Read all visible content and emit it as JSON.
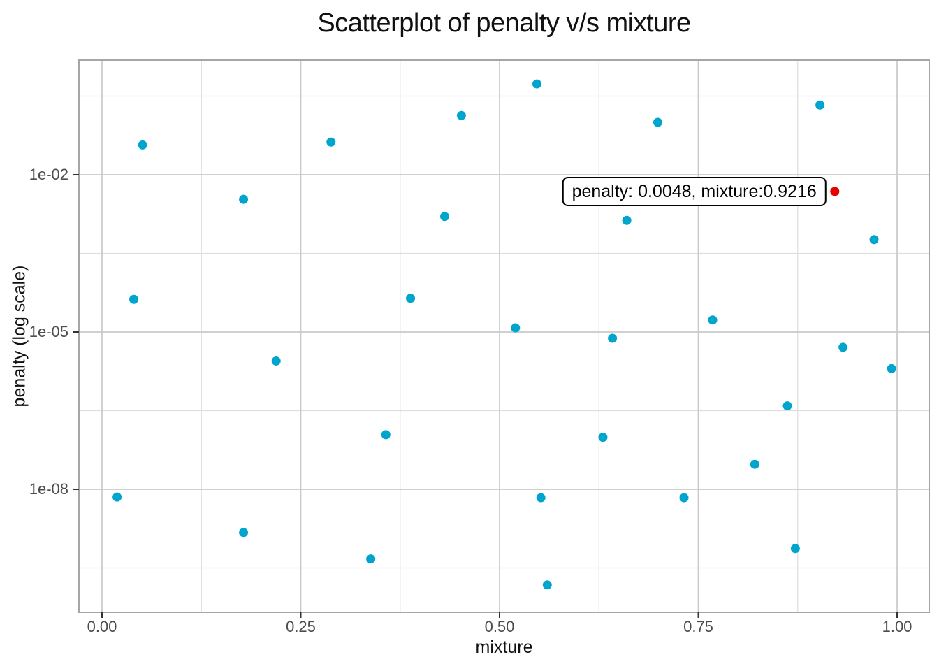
{
  "title": "Scatterplot of penalty v/s mixture",
  "tooltip": {
    "text": "penalty: 0.0048, mixture:0.9216"
  },
  "colors": {
    "point": "#00a5ce",
    "highlight": "#e60000",
    "grid_major": "#c9c9c9",
    "grid_minor": "#dedede",
    "panel_border": "#a6a6a6",
    "tick_label": "#4d4d4d",
    "text": "#111111",
    "background": "#ffffff"
  },
  "chart_data": {
    "type": "scatter",
    "title": "Scatterplot of penalty v/s mixture",
    "xlabel": "mixture",
    "ylabel": "penalty (log scale)",
    "x_scale": "linear",
    "y_scale": "log10",
    "grid": true,
    "legend_position": "none",
    "x_range": [
      -0.029,
      1.0404
    ],
    "y_log_range": [
      -10.3467,
      0.1867
    ],
    "x_ticks": [
      {
        "v": 0.0,
        "label": "0.00"
      },
      {
        "v": 0.25,
        "label": "0.25"
      },
      {
        "v": 0.5,
        "label": "0.50"
      },
      {
        "v": 0.75,
        "label": "0.75"
      },
      {
        "v": 1.0,
        "label": "1.00"
      }
    ],
    "x_minor": [
      0.125,
      0.375,
      0.625,
      0.875
    ],
    "y_ticks": [
      {
        "log": -2,
        "label": "1e-02"
      },
      {
        "log": -5,
        "label": "1e-05"
      },
      {
        "log": -8,
        "label": "1e-08"
      }
    ],
    "y_minor_logs": [
      -0.5,
      -3.5,
      -6.5,
      -9.5
    ],
    "series": [
      {
        "name": "points",
        "color": "#00a5ce",
        "marker_radius": 6.5,
        "points": [
          {
            "mixture": 0.051,
            "penalty": 0.037
          },
          {
            "mixture": 0.288,
            "penalty": 0.042
          },
          {
            "mixture": 0.178,
            "penalty": 0.0034
          },
          {
            "mixture": 0.547,
            "penalty": 0.54
          },
          {
            "mixture": 0.452,
            "penalty": 0.135
          },
          {
            "mixture": 0.431,
            "penalty": 0.0016
          },
          {
            "mixture": 0.66,
            "penalty": 0.00135
          },
          {
            "mixture": 0.699,
            "penalty": 0.1
          },
          {
            "mixture": 0.903,
            "penalty": 0.214
          },
          {
            "mixture": 0.971,
            "penalty": 0.00058
          },
          {
            "mixture": 0.04,
            "penalty": 4.2e-05
          },
          {
            "mixture": 0.219,
            "penalty": 2.8e-06
          },
          {
            "mixture": 0.388,
            "penalty": 4.4e-05
          },
          {
            "mixture": 0.52,
            "penalty": 1.2e-05
          },
          {
            "mixture": 0.642,
            "penalty": 7.6e-06
          },
          {
            "mixture": 0.357,
            "penalty": 1.1e-07
          },
          {
            "mixture": 0.63,
            "penalty": 9.8e-08
          },
          {
            "mixture": 0.768,
            "penalty": 1.7e-05
          },
          {
            "mixture": 0.932,
            "penalty": 5.1e-06
          },
          {
            "mixture": 0.993,
            "penalty": 2e-06
          },
          {
            "mixture": 0.862,
            "penalty": 3.9e-07
          },
          {
            "mixture": 0.019,
            "penalty": 7.1e-09
          },
          {
            "mixture": 0.178,
            "penalty": 1.5e-09
          },
          {
            "mixture": 0.552,
            "penalty": 6.9e-09
          },
          {
            "mixture": 0.338,
            "penalty": 4.7e-10
          },
          {
            "mixture": 0.56,
            "penalty": 1.5e-10
          },
          {
            "mixture": 0.821,
            "penalty": 3e-08
          },
          {
            "mixture": 0.732,
            "penalty": 6.9e-09
          },
          {
            "mixture": 0.872,
            "penalty": 7.4e-10
          }
        ]
      },
      {
        "name": "highlighted-point",
        "color": "#e60000",
        "marker_radius": 6.5,
        "points": [
          {
            "mixture": 0.9216,
            "penalty": 0.0048
          }
        ]
      }
    ],
    "annotation": {
      "text": "penalty: 0.0048, mixture:0.9216",
      "target": {
        "mixture": 0.9216,
        "penalty": 0.0048
      }
    }
  }
}
